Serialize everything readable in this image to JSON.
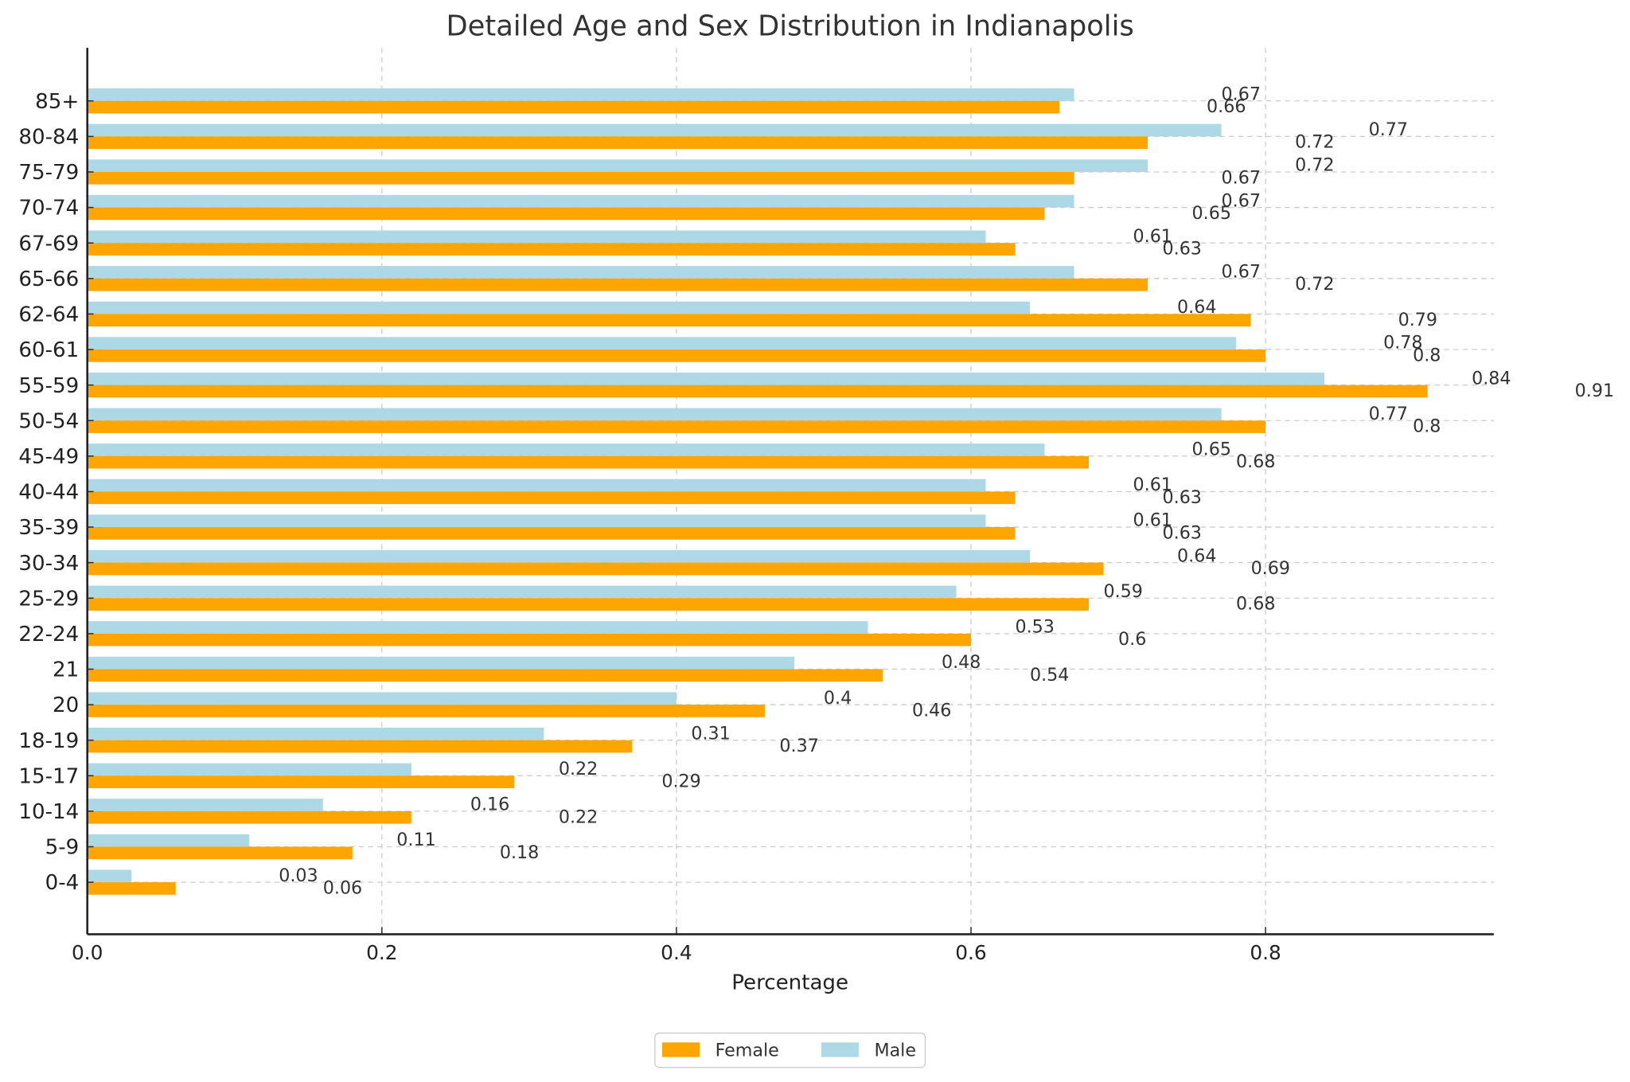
{
  "chart_data": {
    "type": "bar",
    "orientation": "horizontal",
    "title": "Detailed Age and Sex Distribution in Indianapolis",
    "xlabel": "Percentage",
    "ylabel": "",
    "xlim": [
      0,
      0.955
    ],
    "xticks": [
      "0.0",
      "0.2",
      "0.4",
      "0.6",
      "0.8"
    ],
    "grid": true,
    "legend_position": "bottom-center",
    "categories": [
      "0-4",
      "5-9",
      "10-14",
      "15-17",
      "18-19",
      "20",
      "21",
      "22-24",
      "25-29",
      "30-34",
      "35-39",
      "40-44",
      "45-49",
      "50-54",
      "55-59",
      "60-61",
      "62-64",
      "65-66",
      "67-69",
      "70-74",
      "75-79",
      "80-84",
      "85+"
    ],
    "series": [
      {
        "name": "Female",
        "color": "#FFA500",
        "values": [
          0.06,
          0.18,
          0.22,
          0.29,
          0.37,
          0.46,
          0.54,
          0.6,
          0.68,
          0.69,
          0.63,
          0.63,
          0.68,
          0.8,
          0.91,
          0.8,
          0.79,
          0.72,
          0.63,
          0.65,
          0.67,
          0.72,
          0.66
        ]
      },
      {
        "name": "Male",
        "color": "#ADD8E6",
        "values": [
          0.03,
          0.11,
          0.16,
          0.22,
          0.31,
          0.4,
          0.48,
          0.53,
          0.59,
          0.64,
          0.61,
          0.61,
          0.65,
          0.77,
          0.84,
          0.78,
          0.64,
          0.67,
          0.61,
          0.67,
          0.72,
          0.77,
          0.67
        ]
      }
    ]
  }
}
